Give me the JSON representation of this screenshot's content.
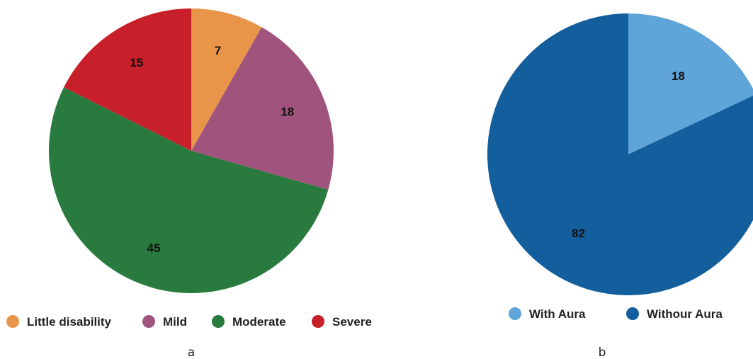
{
  "chart_data": [
    {
      "type": "pie",
      "panel_label": "a",
      "slices": [
        {
          "name": "Little disability",
          "value": 7,
          "color": "#E8954A"
        },
        {
          "name": "Mild",
          "value": 18,
          "color": "#A0537C"
        },
        {
          "name": "Moderate",
          "value": 45,
          "color": "#287A3E"
        },
        {
          "name": "Severe",
          "value": 15,
          "color": "#C8202A"
        }
      ],
      "legend": {
        "placement": "bottom"
      }
    },
    {
      "type": "pie",
      "panel_label": "b",
      "slices": [
        {
          "name": "With Aura",
          "value": 18,
          "color": "#5FA5DA"
        },
        {
          "name": "Withour Aura",
          "value": 82,
          "color": "#135E9D"
        }
      ],
      "legend": {
        "placement": "bottom"
      }
    }
  ]
}
